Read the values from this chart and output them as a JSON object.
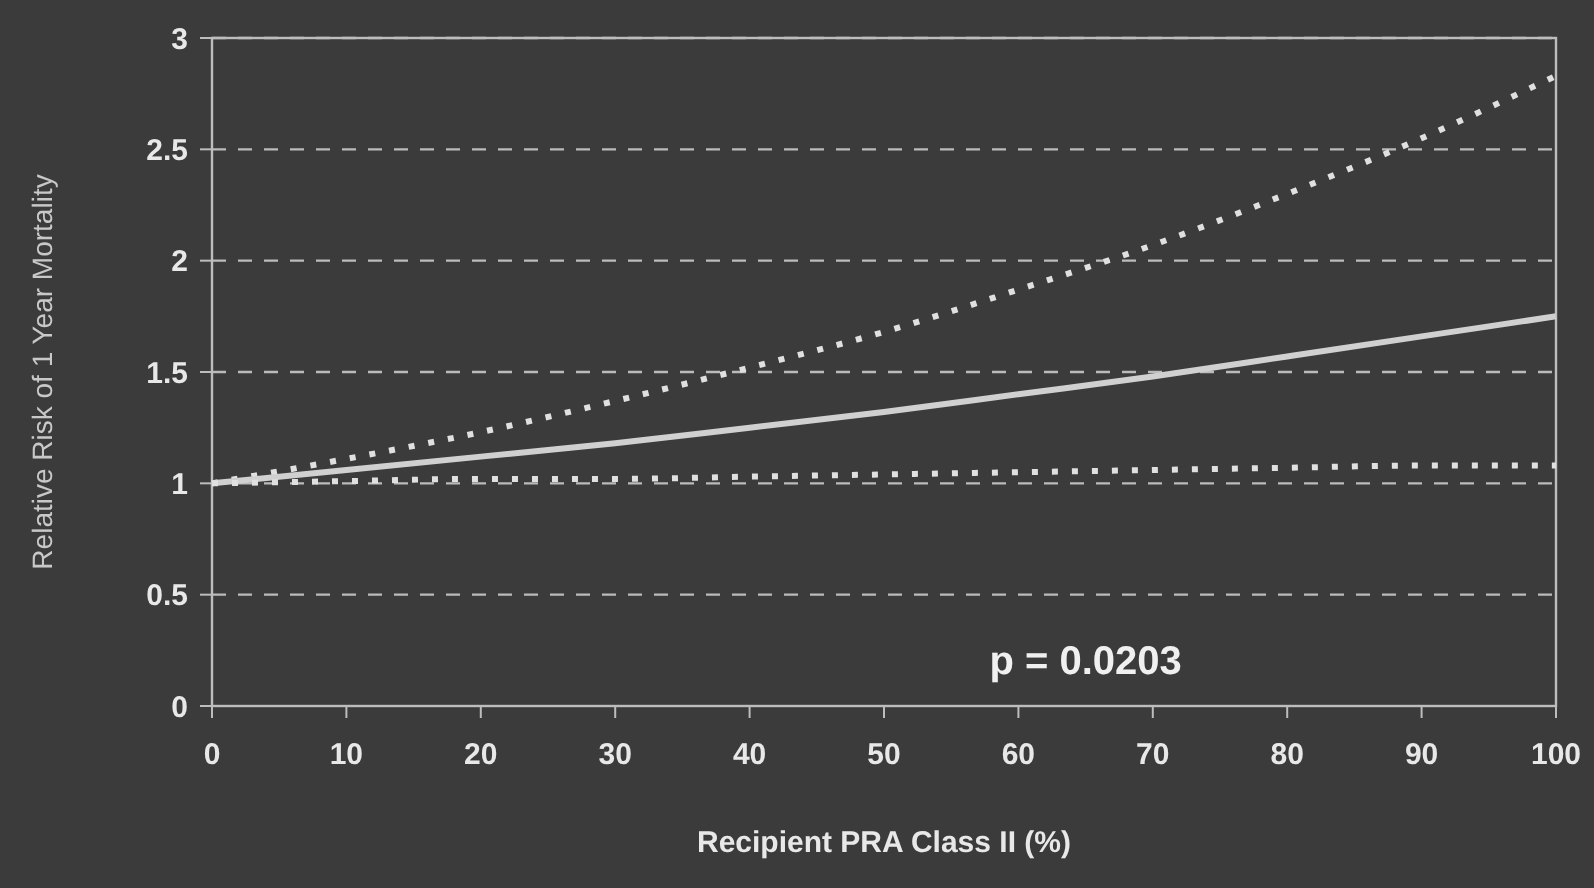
{
  "chart_data": {
    "type": "line",
    "xlabel": "Recipient PRA Class II (%)",
    "ylabel": "Relative Risk of 1 Year Mortality",
    "x": [
      0,
      10,
      20,
      30,
      40,
      50,
      60,
      70,
      80,
      90,
      100
    ],
    "series": [
      {
        "color": "#e0e0e0",
        "line_style": "dotted",
        "values": [
          1,
          1.11,
          1.23,
          1.37,
          1.52,
          1.68,
          1.87,
          2.07,
          2.3,
          2.55,
          2.83
        ]
      },
      {
        "color": "#d0d0d0",
        "line_style": "solid",
        "values": [
          1,
          1.06,
          1.12,
          1.18,
          1.25,
          1.32,
          1.4,
          1.48,
          1.57,
          1.66,
          1.75
        ]
      },
      {
        "color": "#e0e0e0",
        "line_style": "dotted",
        "values": [
          1,
          1.01,
          1.02,
          1.02,
          1.03,
          1.04,
          1.05,
          1.06,
          1.07,
          1.08,
          1.08
        ]
      }
    ],
    "xlim": [
      0,
      100
    ],
    "xticks": [
      0,
      10,
      20,
      30,
      40,
      50,
      60,
      70,
      80,
      90,
      100
    ],
    "ylim": [
      0,
      3
    ],
    "yticks": [
      0,
      0.5,
      1,
      1.5,
      2,
      2.5,
      3
    ],
    "grid": "y",
    "marker": "none",
    "annotations": [
      "p = 0.0203"
    ]
  }
}
